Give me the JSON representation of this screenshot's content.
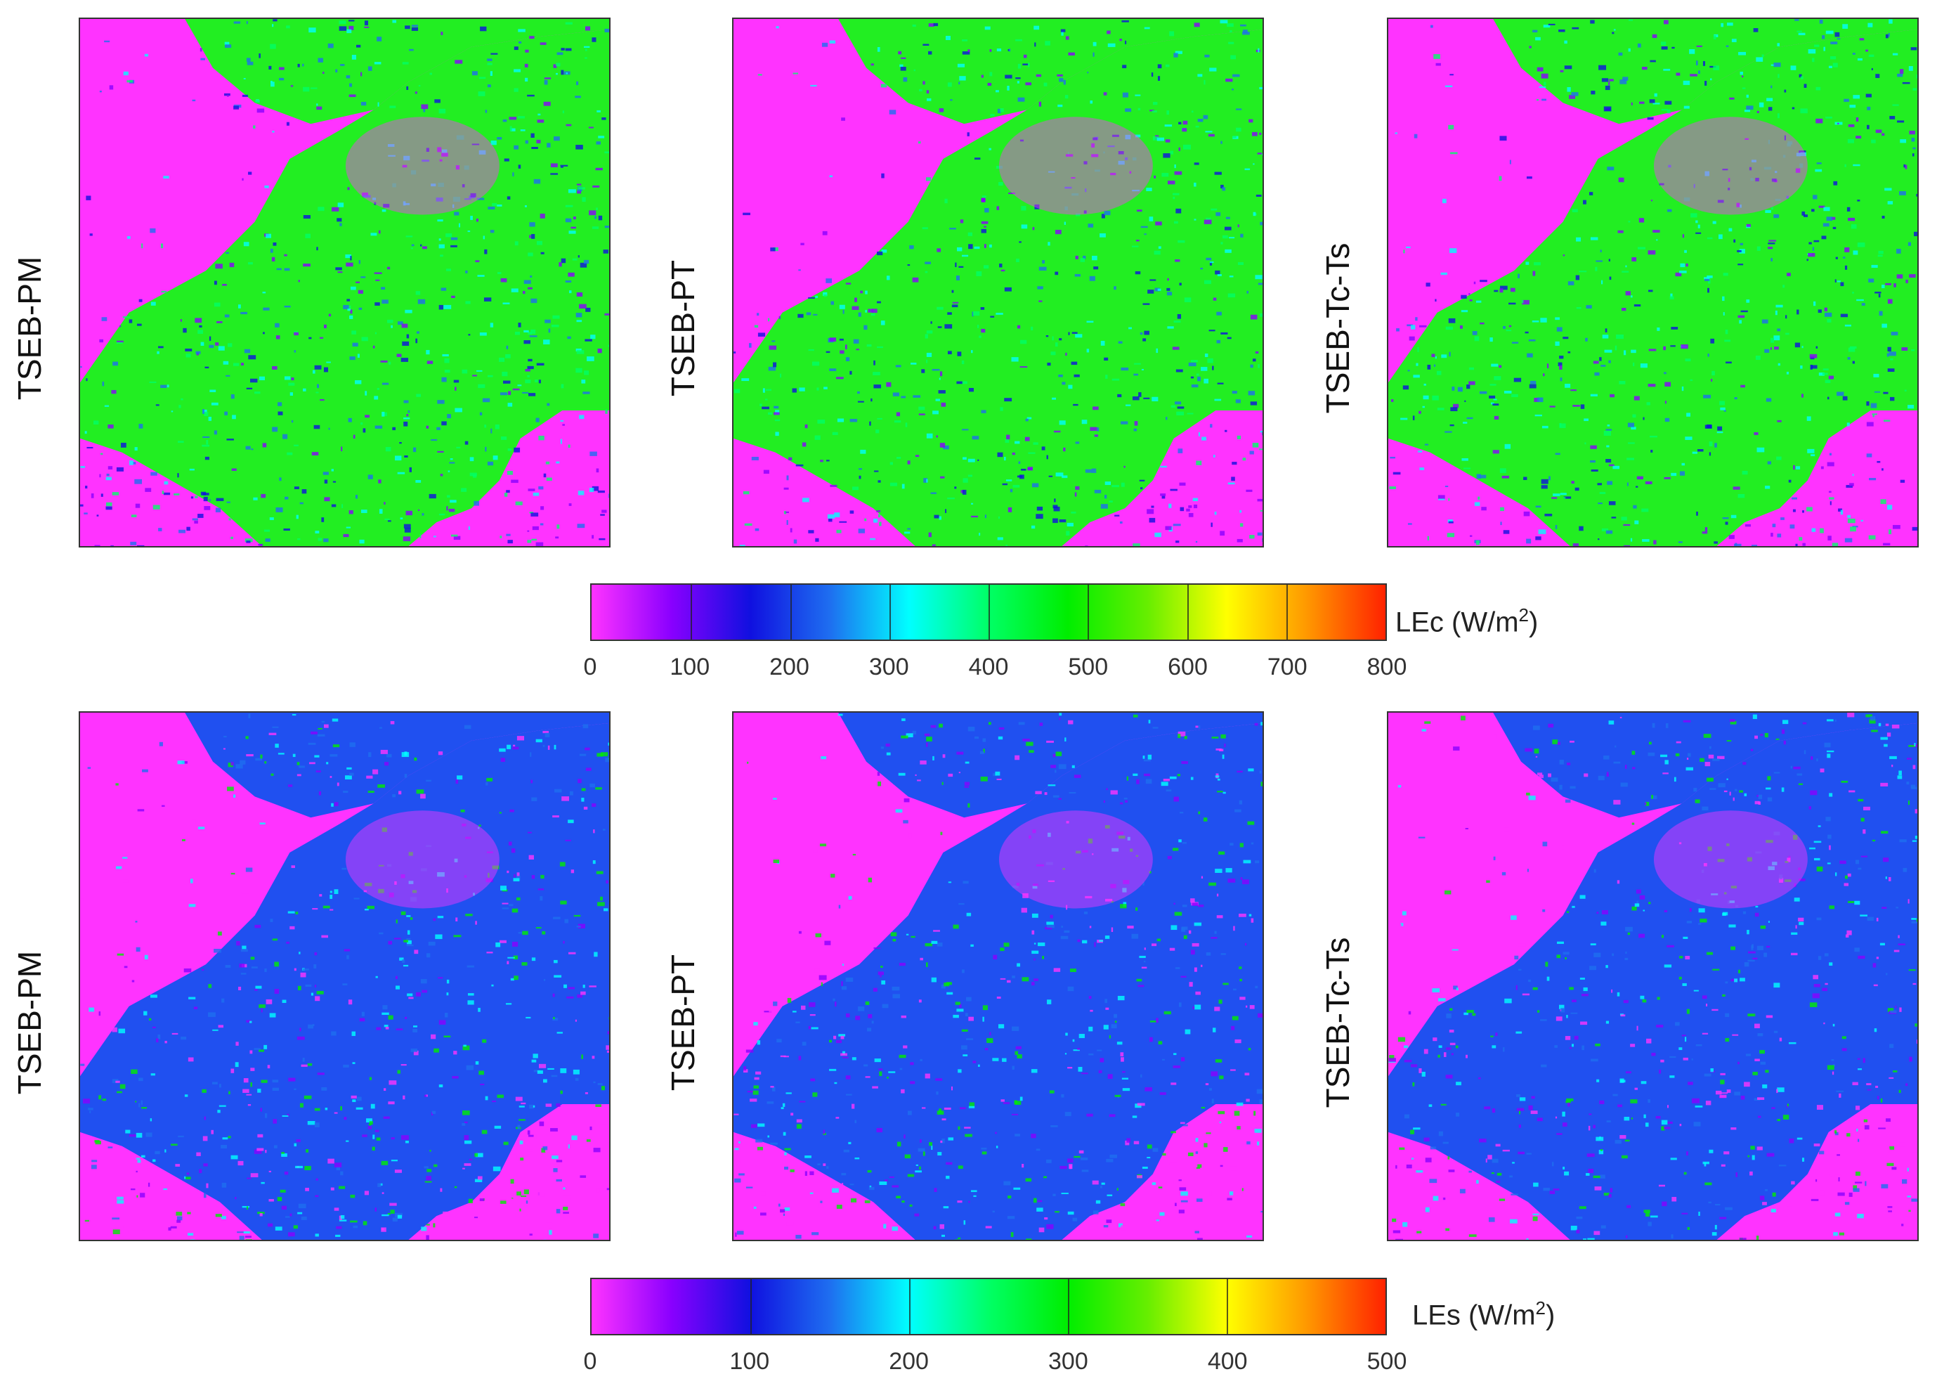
{
  "panels": {
    "model_labels": [
      "TSEB-PM",
      "TSEB-PT",
      "TSEB-Tc-Ts"
    ]
  },
  "colors": {
    "background_class": "#ff33ff",
    "lec_field": "#22ee22",
    "les_field": "#2050f0"
  },
  "colorbars": {
    "lec": {
      "label_prefix": "LEc (W/m",
      "label_sup": "2",
      "label_suffix": ")",
      "ticks": [
        "0",
        "100",
        "200",
        "300",
        "400",
        "500",
        "600",
        "700",
        "800"
      ],
      "range": [
        0,
        800
      ],
      "colors": [
        "#ff33ff",
        "#8a00ff",
        "#1010e0",
        "#1e6ef0",
        "#00ffff",
        "#00ff66",
        "#00ee00",
        "#66ee00",
        "#ffff00",
        "#ff9900",
        "#ff2200"
      ]
    },
    "les": {
      "label_prefix": "LEs (W/m",
      "label_sup": "2",
      "label_suffix": ")",
      "ticks": [
        "0",
        "100",
        "200",
        "300",
        "400",
        "500"
      ],
      "range": [
        0,
        500
      ],
      "colors": [
        "#ff33ff",
        "#8a00ff",
        "#1010e0",
        "#1e6ef0",
        "#00ffff",
        "#00ff66",
        "#00ee00",
        "#66ee00",
        "#ffff00",
        "#ff9900",
        "#ff2200"
      ]
    }
  }
}
